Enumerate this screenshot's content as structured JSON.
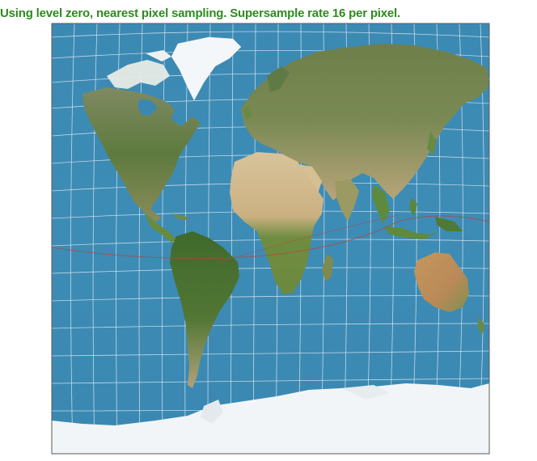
{
  "caption": "Using level zero, nearest pixel sampling. Supersample rate 16 per pixel.",
  "colors": {
    "caption": "#2f8a1f",
    "ocean": "#3a8ab4",
    "land_green": "#5e7d3c",
    "land_desert": "#cdb48a",
    "ice": "#f3f6f8",
    "graticule": "#dde7ee",
    "tropic_line": "#b4463c"
  },
  "icons": {
    "map": "world-map-equal-area-projection"
  }
}
